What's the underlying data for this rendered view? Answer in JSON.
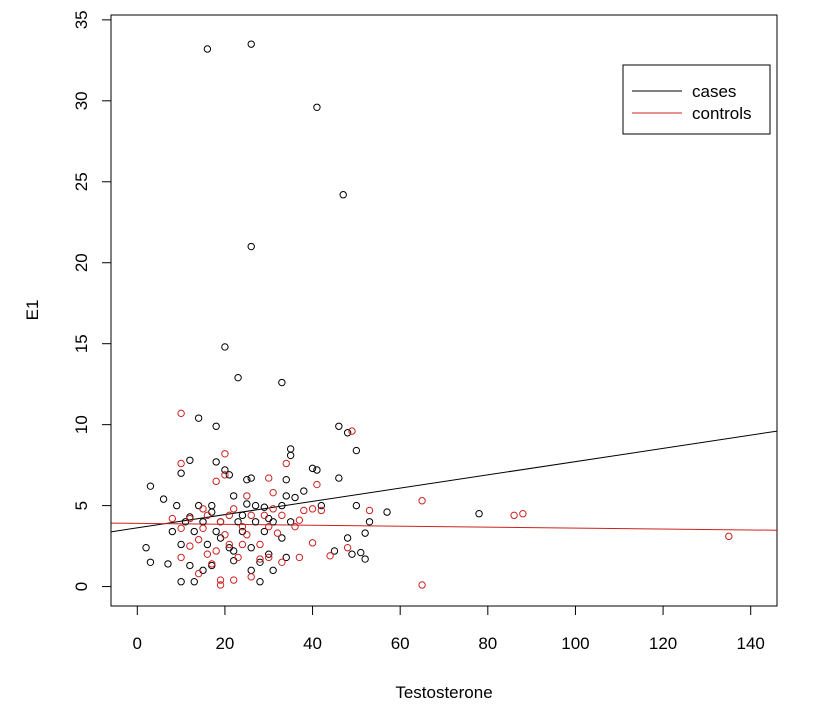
{
  "chart_data": {
    "type": "scatter",
    "title": "",
    "xlabel": "Testosterone",
    "ylabel": "E1",
    "xlim": [
      -6,
      146
    ],
    "ylim": [
      -1.2,
      35.3
    ],
    "x_ticks": [
      0,
      20,
      40,
      60,
      80,
      100,
      120,
      140
    ],
    "y_ticks": [
      0,
      5,
      10,
      15,
      20,
      25,
      30,
      35
    ],
    "legend": {
      "position": "top-right",
      "entries": [
        "cases",
        "controls"
      ]
    },
    "colors": {
      "cases": "#000000",
      "controls": "#cc2222"
    },
    "series": [
      {
        "name": "cases",
        "points": [
          [
            16,
            33.2
          ],
          [
            26,
            33.5
          ],
          [
            41,
            29.6
          ],
          [
            47,
            24.2
          ],
          [
            26,
            21.0
          ],
          [
            20,
            14.8
          ],
          [
            23,
            12.9
          ],
          [
            33,
            12.6
          ],
          [
            14,
            10.4
          ],
          [
            18,
            9.9
          ],
          [
            46,
            9.9
          ],
          [
            48,
            9.5
          ],
          [
            50,
            8.4
          ],
          [
            35,
            8.5
          ],
          [
            35,
            8.1
          ],
          [
            12,
            7.8
          ],
          [
            18,
            7.7
          ],
          [
            20,
            7.2
          ],
          [
            41,
            7.2
          ],
          [
            40,
            7.3
          ],
          [
            10,
            7.0
          ],
          [
            21,
            6.9
          ],
          [
            25,
            6.6
          ],
          [
            26,
            6.7
          ],
          [
            34,
            6.6
          ],
          [
            46,
            6.7
          ],
          [
            3,
            6.2
          ],
          [
            22,
            5.6
          ],
          [
            34,
            5.6
          ],
          [
            38,
            5.9
          ],
          [
            36,
            5.5
          ],
          [
            57,
            4.6
          ],
          [
            78,
            4.5
          ],
          [
            6,
            5.4
          ],
          [
            9,
            5.0
          ],
          [
            14,
            5.0
          ],
          [
            17,
            5.0
          ],
          [
            27,
            5.0
          ],
          [
            33,
            5.0
          ],
          [
            42,
            5.0
          ],
          [
            50,
            5.0
          ],
          [
            53,
            4.0
          ],
          [
            52,
            3.3
          ],
          [
            11,
            4.0
          ],
          [
            15,
            4.0
          ],
          [
            19,
            4.0
          ],
          [
            23,
            4.0
          ],
          [
            27,
            4.0
          ],
          [
            31,
            4.0
          ],
          [
            35,
            4.0
          ],
          [
            8,
            3.4
          ],
          [
            13,
            3.4
          ],
          [
            18,
            3.4
          ],
          [
            24,
            3.4
          ],
          [
            29,
            3.4
          ],
          [
            33,
            3.0
          ],
          [
            48,
            3.0
          ],
          [
            2,
            2.4
          ],
          [
            10,
            2.6
          ],
          [
            16,
            2.6
          ],
          [
            21,
            2.4
          ],
          [
            26,
            2.4
          ],
          [
            30,
            2.0
          ],
          [
            34,
            1.8
          ],
          [
            45,
            2.2
          ],
          [
            52,
            1.7
          ],
          [
            7,
            1.4
          ],
          [
            12,
            1.3
          ],
          [
            17,
            1.3
          ],
          [
            22,
            1.6
          ],
          [
            28,
            1.5
          ],
          [
            3,
            1.5
          ],
          [
            10,
            0.3
          ],
          [
            13,
            0.3
          ],
          [
            28,
            0.3
          ],
          [
            15,
            1.0
          ],
          [
            26,
            1.0
          ],
          [
            31,
            1.0
          ],
          [
            49,
            2.0
          ],
          [
            51,
            2.1
          ],
          [
            24,
            4.4
          ],
          [
            29,
            4.9
          ],
          [
            19,
            3.0
          ],
          [
            22,
            2.2
          ],
          [
            17,
            4.6
          ],
          [
            25,
            5.1
          ],
          [
            30,
            4.2
          ],
          [
            12,
            4.3
          ]
        ]
      },
      {
        "name": "controls",
        "points": [
          [
            10,
            10.7
          ],
          [
            49,
            9.6
          ],
          [
            20,
            8.2
          ],
          [
            10,
            7.6
          ],
          [
            34,
            7.6
          ],
          [
            20,
            6.9
          ],
          [
            30,
            6.7
          ],
          [
            18,
            6.5
          ],
          [
            41,
            6.3
          ],
          [
            31,
            5.8
          ],
          [
            25,
            5.6
          ],
          [
            65,
            5.3
          ],
          [
            86,
            4.4
          ],
          [
            88,
            4.5
          ],
          [
            135,
            3.1
          ],
          [
            53,
            4.7
          ],
          [
            38,
            4.7
          ],
          [
            42,
            4.7
          ],
          [
            16,
            4.4
          ],
          [
            21,
            4.4
          ],
          [
            26,
            4.4
          ],
          [
            29,
            4.4
          ],
          [
            33,
            4.4
          ],
          [
            8,
            4.2
          ],
          [
            12,
            4.2
          ],
          [
            19,
            4.0
          ],
          [
            24,
            3.7
          ],
          [
            30,
            3.7
          ],
          [
            36,
            3.7
          ],
          [
            10,
            3.6
          ],
          [
            15,
            3.6
          ],
          [
            20,
            3.2
          ],
          [
            25,
            3.2
          ],
          [
            32,
            3.3
          ],
          [
            37,
            4.1
          ],
          [
            14,
            2.9
          ],
          [
            21,
            2.6
          ],
          [
            28,
            2.6
          ],
          [
            40,
            2.7
          ],
          [
            48,
            2.4
          ],
          [
            10,
            1.8
          ],
          [
            16,
            2.0
          ],
          [
            23,
            1.8
          ],
          [
            30,
            1.8
          ],
          [
            37,
            1.8
          ],
          [
            44,
            1.9
          ],
          [
            14,
            0.8
          ],
          [
            19,
            0.4
          ],
          [
            22,
            0.4
          ],
          [
            26,
            0.6
          ],
          [
            19,
            0.1
          ],
          [
            65,
            0.1
          ],
          [
            17,
            1.4
          ],
          [
            28,
            1.7
          ],
          [
            33,
            1.5
          ],
          [
            12,
            2.5
          ],
          [
            18,
            2.2
          ],
          [
            24,
            2.6
          ],
          [
            15,
            4.8
          ],
          [
            22,
            4.8
          ],
          [
            31,
            4.8
          ],
          [
            40,
            4.8
          ]
        ]
      }
    ],
    "fit_lines": [
      {
        "name": "cases",
        "x": [
          -6,
          146
        ],
        "y": [
          3.38,
          9.6
        ]
      },
      {
        "name": "controls",
        "x": [
          -6,
          146
        ],
        "y": [
          3.92,
          3.48
        ]
      }
    ]
  }
}
